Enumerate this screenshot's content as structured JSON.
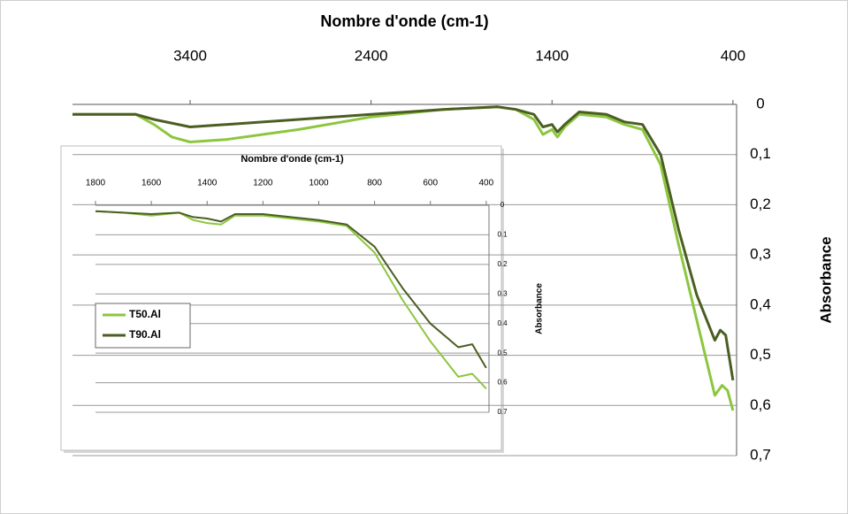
{
  "chart_data": [
    {
      "type": "line",
      "title": "Nombre d'onde (cm-1)",
      "y_label": "Absorbance",
      "xlim": [
        4050,
        380
      ],
      "xticks": [
        3400,
        2400,
        1400,
        400
      ],
      "ylim": [
        0,
        0.7
      ],
      "yticks": [
        0,
        {
          "value": 0.1,
          "label": "0,1"
        },
        {
          "value": 0.2,
          "label": "0,2"
        },
        {
          "value": 0.3,
          "label": "0,3"
        },
        {
          "value": 0.4,
          "label": "0,4"
        },
        {
          "value": 0.5,
          "label": "0,5"
        },
        {
          "value": 0.6,
          "label": "0,6"
        },
        {
          "value": 0.7,
          "label": "0,7"
        }
      ],
      "grid": true,
      "series": [
        {
          "color": "#8cc63e",
          "x": [
            4050,
            3700,
            3600,
            3500,
            3400,
            3200,
            2800,
            2400,
            2000,
            1700,
            1600,
            1500,
            1450,
            1400,
            1370,
            1330,
            1250,
            1100,
            1000,
            900,
            800,
            700,
            600,
            500,
            460,
            430,
            400
          ],
          "values": [
            0.02,
            0.02,
            0.04,
            0.065,
            0.075,
            0.07,
            0.05,
            0.025,
            0.01,
            0.005,
            0.01,
            0.03,
            0.06,
            0.05,
            0.065,
            0.045,
            0.02,
            0.025,
            0.04,
            0.05,
            0.12,
            0.28,
            0.43,
            0.58,
            0.56,
            0.57,
            0.61
          ]
        },
        {
          "color": "#4b5e22",
          "x": [
            4050,
            3700,
            3600,
            3400,
            3200,
            2800,
            2400,
            2000,
            1700,
            1600,
            1500,
            1450,
            1400,
            1370,
            1330,
            1250,
            1100,
            1000,
            900,
            800,
            700,
            600,
            500,
            470,
            440,
            400
          ],
          "values": [
            0.02,
            0.02,
            0.03,
            0.045,
            0.04,
            0.03,
            0.02,
            0.01,
            0.005,
            0.01,
            0.02,
            0.045,
            0.04,
            0.055,
            0.04,
            0.015,
            0.02,
            0.035,
            0.04,
            0.1,
            0.25,
            0.38,
            0.47,
            0.45,
            0.46,
            0.55
          ]
        }
      ]
    },
    {
      "type": "line",
      "title": "Nombre d'onde (cm-1)",
      "y_label": "Absorbance",
      "xlim": [
        1800,
        390
      ],
      "xticks": [
        1800,
        1600,
        1400,
        1200,
        1000,
        800,
        600,
        400
      ],
      "ylim": [
        0,
        0.7
      ],
      "yticks": [
        0,
        0.1,
        0.2,
        0.3,
        0.4,
        0.5,
        0.6,
        0.7
      ],
      "grid": true,
      "legend": "left",
      "series": [
        {
          "name": "T50.Al",
          "color": "#8cc63e",
          "x": [
            1800,
            1700,
            1600,
            1500,
            1450,
            1400,
            1350,
            1300,
            1200,
            1100,
            1000,
            900,
            800,
            700,
            600,
            500,
            450,
            400
          ],
          "values": [
            0.02,
            0.025,
            0.035,
            0.025,
            0.05,
            0.06,
            0.065,
            0.035,
            0.035,
            0.045,
            0.055,
            0.07,
            0.16,
            0.32,
            0.46,
            0.58,
            0.57,
            0.62
          ]
        },
        {
          "name": "T90.Al",
          "color": "#4b5e22",
          "x": [
            1800,
            1700,
            1600,
            1500,
            1450,
            1400,
            1350,
            1300,
            1200,
            1100,
            1000,
            900,
            800,
            700,
            600,
            500,
            450,
            400
          ],
          "values": [
            0.02,
            0.025,
            0.03,
            0.025,
            0.04,
            0.045,
            0.055,
            0.03,
            0.03,
            0.04,
            0.05,
            0.065,
            0.14,
            0.28,
            0.4,
            0.48,
            0.47,
            0.55
          ]
        }
      ]
    }
  ]
}
